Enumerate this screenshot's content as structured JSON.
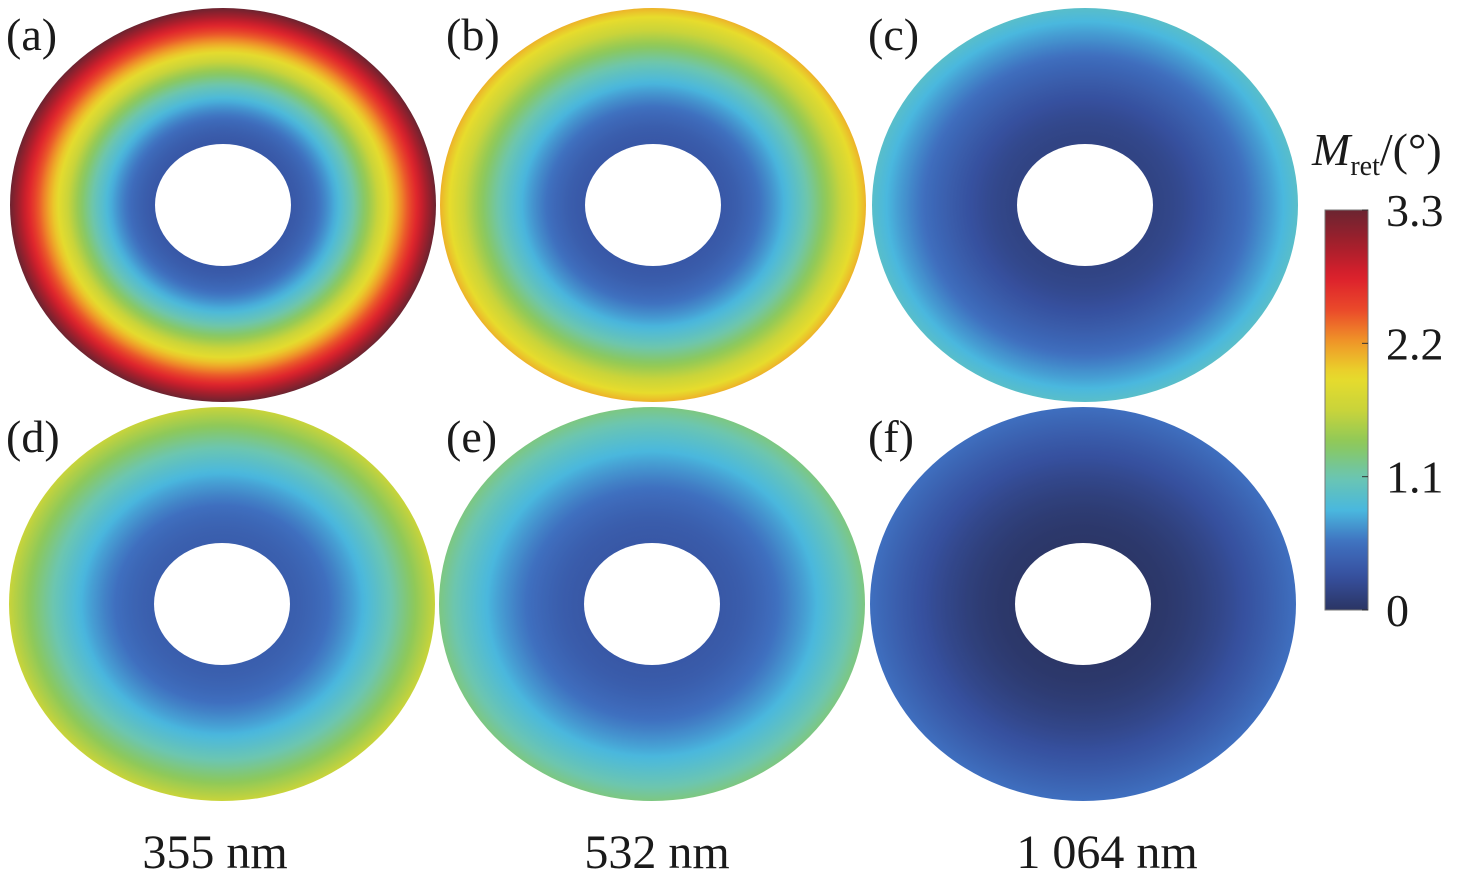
{
  "chart_data": {
    "type": "heatmap",
    "description_kind": "annular radial maps",
    "colorbar": {
      "label_main": "M",
      "label_sub": "ret",
      "label_unit": "/(°)",
      "range": [
        0,
        3.3
      ],
      "ticks": [
        "3.3",
        "2.2",
        "1.1",
        "0"
      ],
      "tick_values": [
        3.3,
        2.2,
        1.1,
        0
      ],
      "colormap": [
        "#2b3564",
        "#36509e",
        "#3f6fbf",
        "#4ab8de",
        "#6cc6b0",
        "#8cc85a",
        "#c9d43a",
        "#e8dc2c",
        "#f09a28",
        "#ea4a2a",
        "#dc1f2c",
        "#a11f2c",
        "#6b2430"
      ]
    },
    "panels": [
      {
        "label": "(a)",
        "inner_value": 0.35,
        "outer_value": 3.3
      },
      {
        "label": "(b)",
        "inner_value": 0.35,
        "outer_value": 2.1
      },
      {
        "label": "(c)",
        "inner_value": 0.15,
        "outer_value": 0.95
      },
      {
        "label": "(d)",
        "inner_value": 0.4,
        "outer_value": 1.65
      },
      {
        "label": "(e)",
        "inner_value": 0.35,
        "outer_value": 1.25
      },
      {
        "label": "(f)",
        "inner_value": 0.02,
        "outer_value": 0.55
      }
    ],
    "column_labels": [
      "355 nm",
      "532 nm",
      "1 064 nm"
    ]
  }
}
